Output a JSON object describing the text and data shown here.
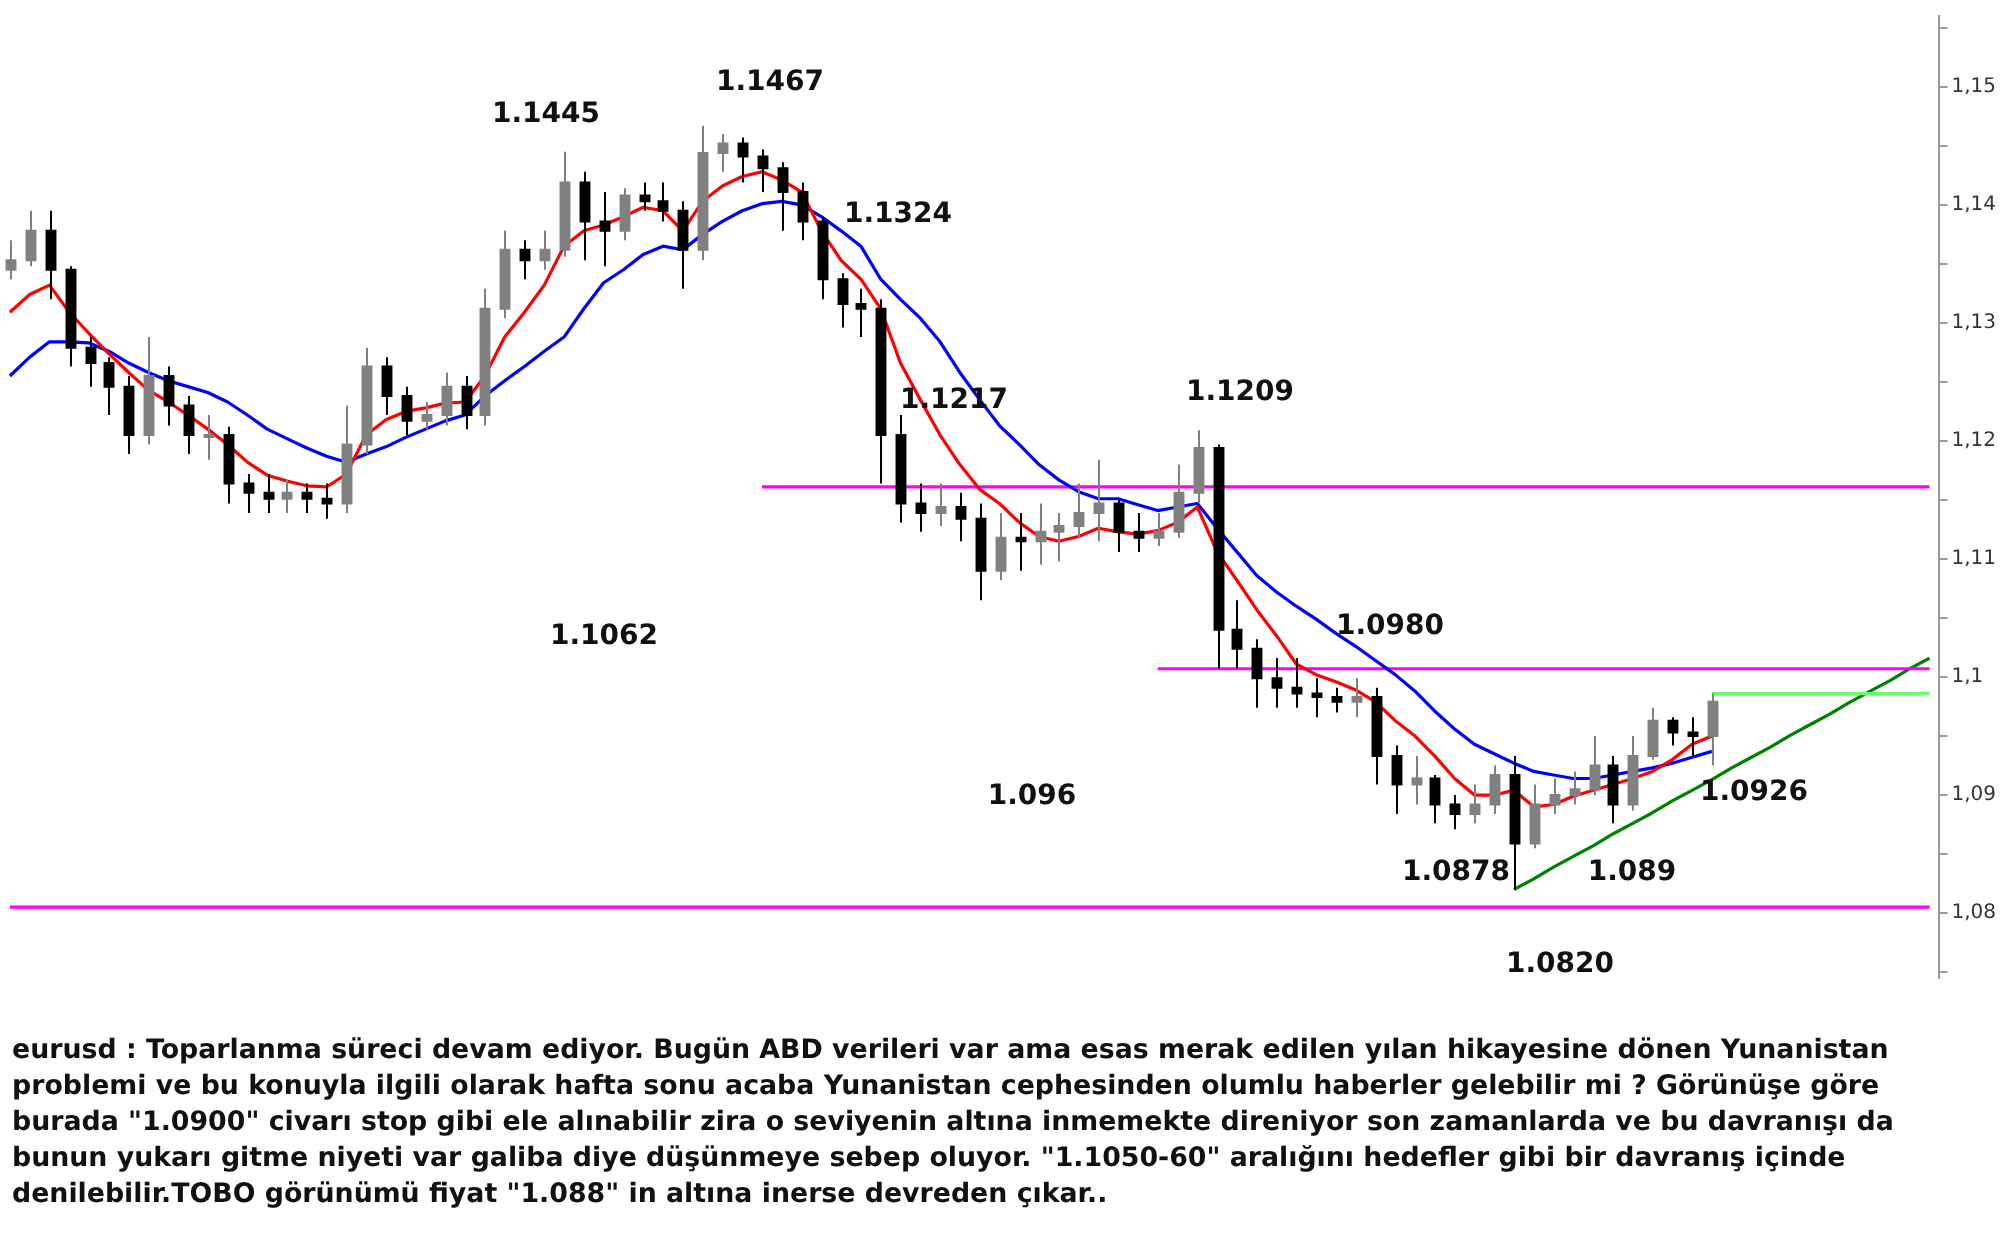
{
  "chart_data": {
    "type": "candlestick",
    "colors": [
      "#808080",
      "#808080",
      "#000000",
      "#000000",
      "#000000",
      "#000000",
      "#000000",
      "#808080",
      "#000000",
      "#000000",
      "#808080",
      "#000000",
      "#000000",
      "#000000",
      "#808080",
      "#000000",
      "#000000",
      "#808080",
      "#808080",
      "#000000",
      "#000000",
      "#808080",
      "#808080",
      "#000000",
      "#808080",
      "#808080",
      "#000000",
      "#808080",
      "#808080",
      "#000000",
      "#000000",
      "#808080",
      "#000000",
      "#000000",
      "#000000",
      "#808080",
      "#808080",
      "#000000",
      "#000000",
      "#000000",
      "#000000",
      "#000000",
      "#000000",
      "#000000",
      "#000000",
      "#000000",
      "#000000",
      "#808080",
      "#000000",
      "#000000",
      "#808080",
      "#000000",
      "#808080",
      "#808080",
      "#808080",
      "#808080",
      "#000000",
      "#000000",
      "#808080",
      "#808080",
      "#808080",
      "#000000",
      "#000000",
      "#000000",
      "#000000",
      "#000000",
      "#000000",
      "#000000",
      "#808080",
      "#000000",
      "#000000",
      "#808080",
      "#000000",
      "#000000",
      "#808080",
      "#808080",
      "#000000",
      "#808080",
      "#808080",
      "#808080",
      "#808080",
      "#000000",
      "#808080",
      "#808080",
      "#000000",
      "#000000",
      "#808080",
      null,
      null,
      null,
      null,
      null,
      null,
      null,
      null,
      null,
      null,
      null
    ],
    "tick_labels": "y",
    "marker": "none",
    "categories": [
      null,
      null,
      null,
      null,
      null,
      null,
      null,
      null,
      null,
      null,
      null,
      null,
      null,
      null,
      null,
      null,
      null,
      null,
      null,
      null,
      null,
      null,
      null,
      null,
      null,
      null,
      null,
      null,
      null,
      null,
      null,
      null,
      null,
      null,
      null,
      null,
      null,
      null,
      null,
      null,
      null,
      null,
      null,
      null,
      null,
      null,
      null,
      null,
      null,
      null,
      null,
      null,
      null,
      null,
      null,
      null,
      null,
      null,
      null,
      null,
      null,
      null,
      null,
      null,
      null,
      null,
      null,
      null,
      null,
      null,
      null,
      null,
      null,
      null,
      null,
      null,
      null,
      null,
      null,
      null,
      null,
      null,
      null,
      null,
      null,
      null,
      null,
      null,
      null,
      null,
      null,
      null,
      null,
      null,
      null,
      null,
      null,
      null
    ],
    "ohlc": [
      [
        1.1345,
        1.137,
        1.1337,
        1.1353
      ],
      [
        1.1353,
        1.1395,
        1.1348,
        1.1378
      ],
      [
        1.1378,
        1.1395,
        1.132,
        1.1345
      ],
      [
        1.1345,
        1.1348,
        1.1263,
        1.1279
      ],
      [
        1.1279,
        1.1288,
        1.1246,
        1.1266
      ],
      [
        1.1266,
        1.1271,
        1.1222,
        1.1246
      ],
      [
        1.1246,
        1.1255,
        1.1189,
        1.1205
      ],
      [
        1.1205,
        1.1288,
        1.1197,
        1.1255
      ],
      [
        1.1255,
        1.1263,
        1.1213,
        1.123
      ],
      [
        1.123,
        1.1238,
        1.1189,
        1.1205
      ],
      [
        1.1205,
        1.1222,
        1.1184,
        1.1205
      ],
      [
        1.1205,
        1.1212,
        1.1147,
        1.1164
      ],
      [
        1.1164,
        1.1172,
        1.1139,
        1.1156
      ],
      [
        1.1156,
        1.1172,
        1.1139,
        1.1151
      ],
      [
        1.1151,
        1.1167,
        1.1139,
        1.1156
      ],
      [
        1.1156,
        1.1164,
        1.1139,
        1.1151
      ],
      [
        1.1151,
        1.1164,
        1.1134,
        1.1147
      ],
      [
        1.1147,
        1.123,
        1.1139,
        1.1197
      ],
      [
        1.1197,
        1.1279,
        1.1189,
        1.1263
      ],
      [
        1.1263,
        1.1271,
        1.1222,
        1.1238
      ],
      [
        1.1238,
        1.1246,
        1.1205,
        1.1217
      ],
      [
        1.1217,
        1.1233,
        1.121,
        1.1222
      ],
      [
        1.1222,
        1.1258,
        1.1213,
        1.1246
      ],
      [
        1.1246,
        1.1255,
        1.121,
        1.1222
      ],
      [
        1.1222,
        1.1329,
        1.1213,
        1.1312
      ],
      [
        1.1312,
        1.1378,
        1.1304,
        1.1362
      ],
      [
        1.1362,
        1.137,
        1.1337,
        1.1353
      ],
      [
        1.1353,
        1.1378,
        1.1345,
        1.1362
      ],
      [
        1.1362,
        1.1445,
        1.1356,
        1.1419
      ],
      [
        1.1419,
        1.1428,
        1.1353,
        1.1386
      ],
      [
        1.1386,
        1.1411,
        1.1348,
        1.1378
      ],
      [
        1.1378,
        1.1414,
        1.137,
        1.1408
      ],
      [
        1.1408,
        1.1419,
        1.1395,
        1.1403
      ],
      [
        1.1403,
        1.1419,
        1.1386,
        1.1395
      ],
      [
        1.1395,
        1.1403,
        1.1329,
        1.1362
      ],
      [
        1.1362,
        1.1467,
        1.1353,
        1.1444
      ],
      [
        1.1444,
        1.146,
        1.1428,
        1.1452
      ],
      [
        1.1452,
        1.1457,
        1.1419,
        1.1441
      ],
      [
        1.1441,
        1.1447,
        1.1411,
        1.1431
      ],
      [
        1.1431,
        1.1436,
        1.1378,
        1.1411
      ],
      [
        1.1411,
        1.1419,
        1.137,
        1.1386
      ],
      [
        1.1386,
        1.139,
        1.132,
        1.1337
      ],
      [
        1.1337,
        1.1342,
        1.1296,
        1.1316
      ],
      [
        1.1316,
        1.1329,
        1.1288,
        1.1312
      ],
      [
        1.1312,
        1.132,
        1.1164,
        1.1205
      ],
      [
        1.1205,
        1.1222,
        1.1131,
        1.1147
      ],
      [
        1.1147,
        1.1164,
        1.1123,
        1.1139
      ],
      [
        1.1139,
        1.1164,
        1.1128,
        1.1144
      ],
      [
        1.1144,
        1.1156,
        1.1115,
        1.1134
      ],
      [
        1.1134,
        1.1147,
        1.1065,
        1.109
      ],
      [
        1.109,
        1.1139,
        1.1082,
        1.1118
      ],
      [
        1.1118,
        1.1139,
        1.109,
        1.1115
      ],
      [
        1.1115,
        1.1147,
        1.1095,
        1.1123
      ],
      [
        1.1123,
        1.1139,
        1.1098,
        1.1128
      ],
      [
        1.1128,
        1.1164,
        1.1118,
        1.1139
      ],
      [
        1.1139,
        1.1184,
        1.1115,
        1.1147
      ],
      [
        1.1147,
        1.1151,
        1.1106,
        1.1123
      ],
      [
        1.1123,
        1.1139,
        1.1106,
        1.1118
      ],
      [
        1.1118,
        1.1139,
        1.1111,
        1.1123
      ],
      [
        1.1123,
        1.118,
        1.1118,
        1.1156
      ],
      [
        1.1156,
        1.1209,
        1.1147,
        1.1194
      ],
      [
        1.1194,
        1.1197,
        1.1007,
        1.104
      ],
      [
        1.104,
        1.1065,
        1.1007,
        1.1024
      ],
      [
        1.1024,
        1.1032,
        1.0974,
        1.0999
      ],
      [
        1.0999,
        1.1016,
        1.0974,
        1.0991
      ],
      [
        1.0991,
        1.1016,
        1.0974,
        1.0986
      ],
      [
        1.0986,
        1.0999,
        1.0966,
        1.0983
      ],
      [
        1.0983,
        1.0991,
        1.097,
        1.0979
      ],
      [
        1.0979,
        1.0999,
        1.0966,
        1.0983
      ],
      [
        1.0983,
        1.0991,
        1.0909,
        1.0933
      ],
      [
        1.0933,
        1.0942,
        1.0884,
        1.0909
      ],
      [
        1.0909,
        1.0933,
        1.0892,
        1.0914
      ],
      [
        1.0914,
        1.0917,
        1.0876,
        1.0892
      ],
      [
        1.0892,
        1.09,
        1.0871,
        1.0884
      ],
      [
        1.0884,
        1.0909,
        1.0876,
        1.0892
      ],
      [
        1.0892,
        1.0925,
        1.0884,
        1.0917
      ],
      [
        1.0917,
        1.0933,
        1.082,
        1.0859
      ],
      [
        1.0859,
        1.0909,
        1.0855,
        1.0892
      ],
      [
        1.0892,
        1.0914,
        1.0884,
        1.09
      ],
      [
        1.09,
        1.092,
        1.0892,
        1.0905
      ],
      [
        1.0905,
        1.095,
        1.09,
        1.0925
      ],
      [
        1.0925,
        1.0933,
        1.0876,
        1.0892
      ],
      [
        1.0892,
        1.095,
        1.0887,
        1.0933
      ],
      [
        1.0933,
        1.0974,
        1.093,
        1.0963
      ],
      [
        1.0963,
        1.0966,
        1.0942,
        1.0953
      ],
      [
        1.0953,
        1.0966,
        1.0933,
        1.095
      ],
      [
        1.095,
        1.0986,
        1.0925,
        1.0979
      ],
      null,
      null,
      null,
      null,
      null,
      null,
      null,
      null,
      null,
      null,
      null
    ],
    "series": [
      {
        "type": "line",
        "color": "#ff0000",
        "values": [
          1.1309,
          1.1324,
          1.1332,
          1.1309,
          1.1291,
          1.1274,
          1.1258,
          1.1243,
          1.1233,
          1.1222,
          1.121,
          1.1197,
          1.1182,
          1.1171,
          1.1166,
          1.1162,
          1.1161,
          1.1172,
          1.1205,
          1.1218,
          1.1225,
          1.1228,
          1.1232,
          1.1233,
          1.1255,
          1.1288,
          1.1309,
          1.1332,
          1.1365,
          1.1378,
          1.1383,
          1.139,
          1.1398,
          1.1395,
          1.1378,
          1.1403,
          1.1416,
          1.1424,
          1.1428,
          1.1421,
          1.1411,
          1.1378,
          1.1353,
          1.1337,
          1.1312,
          1.1266,
          1.1235,
          1.1205,
          1.118,
          1.1159,
          1.1147,
          1.1131,
          1.1119,
          1.1115,
          1.1119,
          1.1126,
          1.1123,
          1.1121,
          1.1124,
          1.1131,
          1.1144,
          1.1106,
          1.1082,
          1.1057,
          1.1035,
          1.1011,
          1.1002,
          1.0996,
          1.0989,
          1.0979,
          1.0963,
          1.095,
          1.0933,
          1.0914,
          1.09,
          1.09,
          1.0904,
          1.089,
          1.0892,
          1.0899,
          1.0904,
          1.0909,
          1.0914,
          1.092,
          1.093,
          1.0943,
          1.095,
          null,
          null,
          null,
          null,
          null,
          null,
          null,
          null,
          null,
          null,
          null
        ]
      },
      {
        "type": "line",
        "color": "#0000ff",
        "values": [
          1.1255,
          1.1271,
          1.1284,
          1.1284,
          1.1283,
          1.1276,
          1.1266,
          1.1258,
          1.1251,
          1.1246,
          1.1241,
          1.1233,
          1.1222,
          1.121,
          1.1202,
          1.1194,
          1.1187,
          1.1182,
          1.1189,
          1.1195,
          1.1203,
          1.121,
          1.1217,
          1.1222,
          1.1238,
          1.1251,
          1.1263,
          1.1276,
          1.1288,
          1.1312,
          1.1334,
          1.1345,
          1.1358,
          1.1365,
          1.1362,
          1.1375,
          1.1386,
          1.1395,
          1.1401,
          1.1403,
          1.14,
          1.139,
          1.1378,
          1.1365,
          1.1337,
          1.132,
          1.1304,
          1.1284,
          1.1258,
          1.1235,
          1.1213,
          1.1197,
          1.118,
          1.1167,
          1.1157,
          1.1151,
          1.1151,
          1.1146,
          1.1141,
          1.1144,
          1.1147,
          1.1126,
          1.1106,
          1.1086,
          1.1072,
          1.106,
          1.1049,
          1.1037,
          1.1026,
          1.1014,
          1.1002,
          1.0988,
          1.0971,
          1.0956,
          1.0943,
          1.0935,
          1.0927,
          1.092,
          1.0917,
          1.0914,
          1.0914,
          1.0917,
          1.092,
          1.0923,
          1.0927,
          1.0932,
          1.0937,
          null,
          null,
          null,
          null,
          null,
          null,
          null,
          null,
          null,
          null,
          null
        ]
      },
      {
        "type": "line",
        "color": "#ff00ff",
        "values": [
          null,
          null,
          null,
          null,
          null,
          null,
          null,
          null,
          null,
          null,
          null,
          null,
          null,
          null,
          null,
          null,
          null,
          null,
          null,
          null,
          null,
          null,
          null,
          null,
          null,
          null,
          null,
          null,
          null,
          null,
          null,
          null,
          null,
          null,
          null,
          null,
          null,
          null,
          1.1161,
          1.1161,
          1.1161,
          1.1161,
          1.1161,
          1.1161,
          1.1161,
          1.1161,
          1.1161,
          1.1161,
          1.1161,
          1.1161,
          1.1161,
          1.1161,
          1.1161,
          1.1161,
          1.1161,
          1.1161,
          1.1161,
          1.1161,
          1.1161,
          1.1161,
          1.1161,
          1.1161,
          1.1161,
          1.1161,
          1.1161,
          1.1161,
          1.1161,
          1.1161,
          1.1161,
          1.1161,
          1.1161,
          1.1161,
          1.1161,
          1.1161,
          1.1161,
          1.1161,
          1.1161,
          1.1161,
          1.1161,
          1.1161,
          1.1161,
          1.1161,
          1.1161,
          1.1161,
          1.1161,
          1.1161,
          1.1161,
          1.1161,
          1.1161,
          1.1161,
          1.1161,
          1.1161,
          1.1161,
          1.1161,
          1.1161,
          1.1161,
          1.1161,
          1.1161
        ]
      },
      {
        "type": "line",
        "color": "#ff00ff",
        "values": [
          null,
          null,
          null,
          null,
          null,
          null,
          null,
          null,
          null,
          null,
          null,
          null,
          null,
          null,
          null,
          null,
          null,
          null,
          null,
          null,
          null,
          null,
          null,
          null,
          null,
          null,
          null,
          null,
          null,
          null,
          null,
          null,
          null,
          null,
          null,
          null,
          null,
          null,
          null,
          null,
          null,
          null,
          null,
          null,
          null,
          null,
          null,
          null,
          null,
          null,
          null,
          null,
          null,
          null,
          null,
          null,
          null,
          null,
          1.1007,
          1.1007,
          1.1007,
          1.1007,
          1.1007,
          1.1007,
          1.1007,
          1.1007,
          1.1007,
          1.1007,
          1.1007,
          1.1007,
          1.1007,
          1.1007,
          1.1007,
          1.1007,
          1.1007,
          1.1007,
          1.1007,
          1.1007,
          1.1007,
          1.1007,
          1.1007,
          1.1007,
          1.1007,
          1.1007,
          1.1007,
          1.1007,
          1.1007,
          1.1007,
          1.1007,
          1.1007,
          1.1007,
          1.1007,
          1.1007,
          1.1007,
          1.1007,
          1.1007,
          1.1007,
          1.1007
        ]
      },
      {
        "type": "line",
        "color": "#ff00ff",
        "values": [
          1.0805,
          1.0805,
          1.0805,
          1.0805,
          1.0805,
          1.0805,
          1.0805,
          1.0805,
          1.0805,
          1.0805,
          1.0805,
          1.0805,
          1.0805,
          1.0805,
          1.0805,
          1.0805,
          1.0805,
          1.0805,
          1.0805,
          1.0805,
          1.0805,
          1.0805,
          1.0805,
          1.0805,
          1.0805,
          1.0805,
          1.0805,
          1.0805,
          1.0805,
          1.0805,
          1.0805,
          1.0805,
          1.0805,
          1.0805,
          1.0805,
          1.0805,
          1.0805,
          1.0805,
          1.0805,
          1.0805,
          1.0805,
          1.0805,
          1.0805,
          1.0805,
          1.0805,
          1.0805,
          1.0805,
          1.0805,
          1.0805,
          1.0805,
          1.0805,
          1.0805,
          1.0805,
          1.0805,
          1.0805,
          1.0805,
          1.0805,
          1.0805,
          1.0805,
          1.0805,
          1.0805,
          1.0805,
          1.0805,
          1.0805,
          1.0805,
          1.0805,
          1.0805,
          1.0805,
          1.0805,
          1.0805,
          1.0805,
          1.0805,
          1.0805,
          1.0805,
          1.0805,
          1.0805,
          1.0805,
          1.0805,
          1.0805,
          1.0805,
          1.0805,
          1.0805,
          1.0805,
          1.0805,
          1.0805,
          1.0805,
          1.0805,
          1.0805,
          1.0805,
          1.0805,
          1.0805,
          1.0805,
          1.0805,
          1.0805,
          1.0805,
          1.0805,
          1.0805,
          1.0805
        ]
      },
      {
        "type": "line",
        "color": "#66ff66",
        "values": [
          null,
          null,
          null,
          null,
          null,
          null,
          null,
          null,
          null,
          null,
          null,
          null,
          null,
          null,
          null,
          null,
          null,
          null,
          null,
          null,
          null,
          null,
          null,
          null,
          null,
          null,
          null,
          null,
          null,
          null,
          null,
          null,
          null,
          null,
          null,
          null,
          null,
          null,
          null,
          null,
          null,
          null,
          null,
          null,
          null,
          null,
          null,
          null,
          null,
          null,
          null,
          null,
          null,
          null,
          null,
          null,
          null,
          null,
          null,
          null,
          null,
          null,
          null,
          null,
          null,
          null,
          null,
          null,
          null,
          null,
          null,
          null,
          null,
          null,
          null,
          null,
          null,
          null,
          null,
          null,
          null,
          null,
          null,
          null,
          null,
          null,
          1.0986,
          1.0986,
          1.0986,
          1.0986,
          1.0986,
          1.0986,
          1.0986,
          1.0986,
          1.0986,
          1.0986,
          1.0986,
          1.0986
        ]
      },
      {
        "type": "line",
        "color": "#008000",
        "values": [
          null,
          null,
          null,
          null,
          null,
          null,
          null,
          null,
          null,
          null,
          null,
          null,
          null,
          null,
          null,
          null,
          null,
          null,
          null,
          null,
          null,
          null,
          null,
          null,
          null,
          null,
          null,
          null,
          null,
          null,
          null,
          null,
          null,
          null,
          null,
          null,
          null,
          null,
          null,
          null,
          null,
          null,
          null,
          null,
          null,
          null,
          null,
          null,
          null,
          null,
          null,
          null,
          null,
          null,
          null,
          null,
          null,
          null,
          null,
          null,
          null,
          null,
          null,
          null,
          null,
          null,
          null,
          null,
          null,
          null,
          null,
          null,
          null,
          null,
          null,
          null,
          1.082,
          1.0829,
          1.0839,
          1.0848,
          1.0857,
          1.0867,
          1.0876,
          1.0885,
          1.0895,
          1.0904,
          1.0913,
          1.0923,
          1.0932,
          1.0941,
          1.0951,
          1.096,
          1.0969,
          1.0979,
          1.0988,
          1.0997,
          1.1007,
          1.1016
        ]
      }
    ],
    "ylim": [
      1.0745,
      1.156
    ],
    "yticks": [
      {
        "value": 1.075,
        "label": null
      },
      {
        "value": 1.08,
        "label": "1,08"
      },
      {
        "value": 1.085,
        "label": null
      },
      {
        "value": 1.09,
        "label": "1,09"
      },
      {
        "value": 1.095,
        "label": null
      },
      {
        "value": 1.1,
        "label": "1,1"
      },
      {
        "value": 1.105,
        "label": null
      },
      {
        "value": 1.11,
        "label": "1,11"
      },
      {
        "value": 1.115,
        "label": null
      },
      {
        "value": 1.12,
        "label": "1,12"
      },
      {
        "value": 1.125,
        "label": null
      },
      {
        "value": 1.13,
        "label": "1,13"
      },
      {
        "value": 1.135,
        "label": null
      },
      {
        "value": 1.14,
        "label": "1,14"
      },
      {
        "value": 1.145,
        "label": null
      },
      {
        "value": 1.15,
        "label": "1,15"
      },
      {
        "value": 1.155,
        "label": null
      }
    ],
    "annotations": [
      "1.1445",
      "1.1467",
      "1.1324",
      "1.1217",
      "1.1209",
      "1.1062",
      "1.0980",
      "1.096",
      "1.0926",
      "1.0878",
      "1.089",
      "1.0820",
      "eurusd : Toparlanma süreci devam ediyor. Bugün ABD verileri var ama esas merak edilen yılan hikayesine dönen Yunanistan problemi ve bu konuyla ilgili olarak hafta sonu acaba Yunanistan cephesinden olumlu haberler gelebilir mi ? Görünüşe göre burada \"1.0900\" civarı stop gibi ele alınabilir zira o seviyenin altına inmemekte direniyor son zamanlarda ve bu davranışı da bunun yukarı gitme niyeti var galiba diye düşünmeye sebep oluyor. \"1.1050-60\" aralığını hedefler gibi bir davranış içinde denilebilir.TOBO görünümü fiyat \"1.088\" in altına inerse devreden çıkar.."
    ]
  }
}
